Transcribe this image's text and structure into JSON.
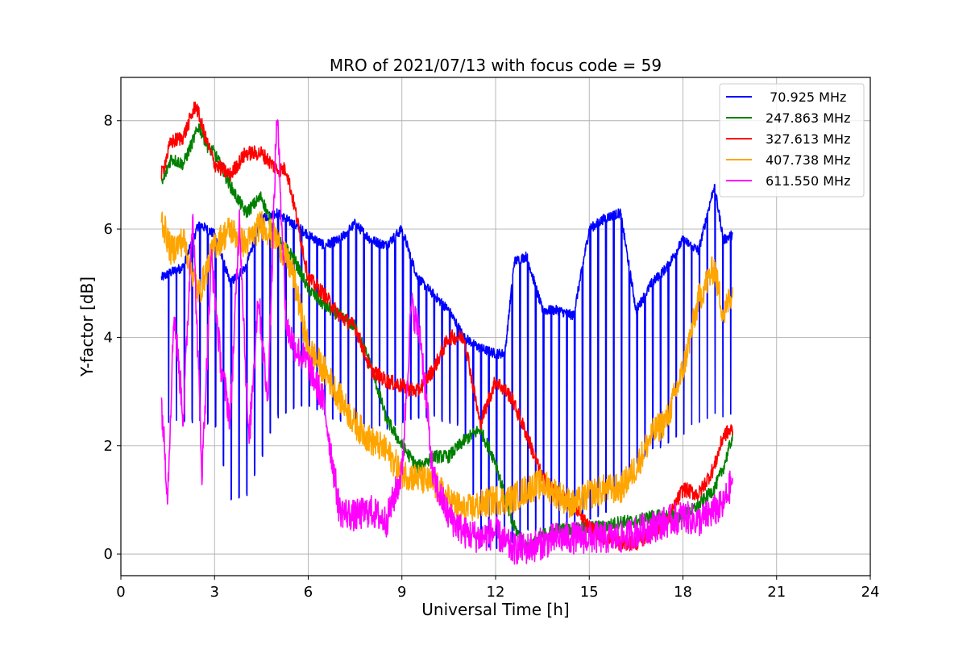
{
  "chart_data": {
    "type": "line",
    "title": "MRO of 2021/07/13 with focus code = 59",
    "xlabel": "Universal Time [h]",
    "ylabel": "Y-factor [dB]",
    "xlim": [
      0,
      24
    ],
    "ylim": [
      -0.4,
      8.8
    ],
    "xticks": [
      0,
      3,
      6,
      9,
      12,
      15,
      18,
      21,
      24
    ],
    "yticks": [
      0,
      2,
      4,
      6,
      8
    ],
    "grid": true,
    "legend_position": "top-right",
    "series": [
      {
        "name": " 70.925 MHz",
        "color": "#0000ff",
        "baseline_x": [
          1.3,
          1.6,
          2.0,
          2.5,
          3.0,
          3.5,
          4.0,
          4.5,
          5.0,
          5.5,
          6.0,
          6.5,
          7.0,
          7.5,
          8.0,
          8.5,
          9.0,
          9.5,
          10.0,
          10.5,
          11.0,
          11.5,
          12.0,
          12.3,
          12.6,
          13.0,
          13.5,
          14.0,
          14.5,
          15.0,
          15.5,
          16.0,
          16.5,
          17.0,
          17.5,
          18.0,
          18.5,
          19.0,
          19.3,
          19.6
        ],
        "baseline_y": [
          5.1,
          5.2,
          5.3,
          6.1,
          5.9,
          5.0,
          5.3,
          6.2,
          6.3,
          6.1,
          5.9,
          5.7,
          5.8,
          6.1,
          5.8,
          5.7,
          6.0,
          5.1,
          4.8,
          4.5,
          4.0,
          3.8,
          3.7,
          3.7,
          5.4,
          5.5,
          4.5,
          4.5,
          4.4,
          6.0,
          6.2,
          6.3,
          4.5,
          5.0,
          5.3,
          5.8,
          5.6,
          6.8,
          5.8,
          5.9
        ],
        "spike_interval_h": 0.25,
        "spike_min": [
          2.4,
          2.4,
          2.4,
          2.4,
          2.4,
          1.0,
          1.0,
          1.7,
          2.5,
          2.6,
          2.7,
          2.5,
          2.4,
          2.4,
          2.3,
          2.3,
          2.4,
          2.5,
          2.5,
          2.4,
          2.3,
          0.1,
          0.1,
          0.1,
          0.2,
          0.4,
          0.4,
          0.4,
          0.4,
          0.6,
          0.7,
          1.4,
          1.6,
          1.9,
          2.0,
          2.2,
          2.4,
          2.5,
          2.5,
          2.5
        ]
      },
      {
        "name": "247.863 MHz",
        "color": "#008000",
        "x": [
          1.3,
          1.6,
          2.0,
          2.5,
          2.8,
          3.0,
          3.5,
          4.0,
          4.5,
          5.0,
          5.5,
          6.0,
          6.5,
          7.0,
          7.5,
          8.0,
          8.5,
          9.0,
          9.5,
          10.0,
          10.5,
          11.0,
          11.5,
          12.0,
          12.5,
          13.0,
          13.5,
          14.0,
          14.5,
          15.0,
          15.5,
          16.0,
          16.5,
          17.0,
          17.5,
          18.0,
          18.5,
          19.0,
          19.3,
          19.6
        ],
        "y": [
          6.8,
          7.3,
          7.2,
          7.9,
          7.5,
          7.4,
          6.8,
          6.3,
          6.6,
          5.8,
          5.5,
          4.9,
          4.6,
          4.4,
          4.2,
          3.5,
          2.5,
          2.0,
          1.6,
          1.8,
          1.8,
          2.1,
          2.3,
          1.7,
          0.6,
          0.1,
          0.35,
          0.45,
          0.45,
          0.5,
          0.5,
          0.6,
          0.6,
          0.7,
          0.7,
          0.7,
          0.9,
          1.2,
          1.6,
          2.2
        ],
        "noise": 0.12
      },
      {
        "name": "327.613 MHz",
        "color": "#ff0000",
        "x": [
          1.3,
          1.6,
          2.0,
          2.4,
          2.7,
          3.0,
          3.5,
          4.0,
          4.5,
          5.0,
          5.3,
          5.6,
          6.0,
          6.5,
          7.0,
          7.5,
          8.0,
          8.5,
          9.0,
          9.5,
          10.0,
          10.5,
          11.0,
          11.5,
          12.0,
          12.5,
          13.0,
          13.5,
          14.0,
          14.5,
          15.0,
          15.5,
          16.0,
          16.5,
          17.0,
          17.5,
          18.0,
          18.5,
          19.0,
          19.3,
          19.6
        ],
        "y": [
          7.0,
          7.6,
          7.7,
          8.3,
          7.7,
          7.2,
          7.0,
          7.4,
          7.4,
          7.1,
          7.1,
          6.3,
          5.1,
          4.8,
          4.4,
          4.2,
          3.4,
          3.2,
          3.1,
          3.0,
          3.4,
          4.0,
          4.0,
          2.4,
          3.2,
          2.9,
          2.2,
          1.4,
          1.1,
          0.9,
          0.5,
          0.3,
          0.2,
          0.2,
          0.4,
          0.6,
          1.2,
          1.1,
          1.6,
          2.2,
          2.3
        ],
        "noise": 0.14
      },
      {
        "name": "407.738 MHz",
        "color": "#ffa500",
        "x": [
          1.3,
          1.6,
          2.0,
          2.5,
          3.0,
          3.5,
          4.0,
          4.5,
          5.0,
          5.5,
          6.0,
          6.5,
          7.0,
          7.5,
          8.0,
          8.5,
          9.0,
          9.5,
          10.0,
          10.5,
          11.0,
          11.5,
          12.0,
          12.5,
          13.0,
          13.5,
          14.0,
          14.5,
          15.0,
          15.5,
          16.0,
          16.5,
          17.0,
          17.5,
          18.0,
          18.5,
          19.0,
          19.3,
          19.6
        ],
        "y": [
          6.2,
          5.6,
          5.8,
          4.8,
          5.7,
          6.0,
          5.7,
          6.1,
          5.8,
          5.2,
          3.8,
          3.4,
          2.9,
          2.4,
          2.1,
          1.9,
          1.5,
          1.4,
          1.3,
          1.0,
          0.8,
          0.9,
          1.0,
          1.0,
          1.2,
          1.3,
          1.1,
          0.9,
          1.1,
          1.2,
          1.2,
          1.6,
          2.2,
          2.5,
          3.4,
          4.7,
          5.3,
          4.4,
          4.9
        ],
        "noise": 0.28
      },
      {
        "name": "611.550 MHz",
        "color": "#ff00ff",
        "x": [
          1.3,
          1.5,
          1.7,
          2.0,
          2.3,
          2.6,
          2.9,
          3.2,
          3.5,
          3.8,
          4.1,
          4.4,
          4.7,
          5.0,
          5.3,
          5.6,
          6.0,
          6.5,
          7.0,
          7.5,
          8.0,
          8.5,
          9.0,
          9.3,
          9.6,
          10.0,
          10.5,
          11.0,
          11.5,
          12.0,
          12.5,
          13.0,
          13.5,
          14.0,
          14.5,
          15.0,
          15.5,
          16.0,
          16.5,
          17.0,
          17.5,
          18.0,
          18.5,
          19.0,
          19.3,
          19.6
        ],
        "y": [
          2.8,
          1.1,
          4.5,
          2.5,
          6.4,
          1.5,
          5.5,
          3.5,
          2.5,
          6.2,
          2.0,
          4.8,
          2.8,
          8.2,
          4.2,
          3.8,
          3.5,
          2.8,
          0.8,
          0.7,
          0.8,
          0.6,
          1.5,
          4.6,
          4.0,
          1.4,
          0.7,
          0.4,
          0.3,
          0.4,
          0.1,
          0.1,
          0.2,
          0.3,
          0.3,
          0.3,
          0.3,
          0.3,
          0.4,
          0.5,
          0.6,
          0.7,
          0.6,
          0.8,
          0.9,
          1.4
        ],
        "noise": 0.3
      }
    ]
  }
}
